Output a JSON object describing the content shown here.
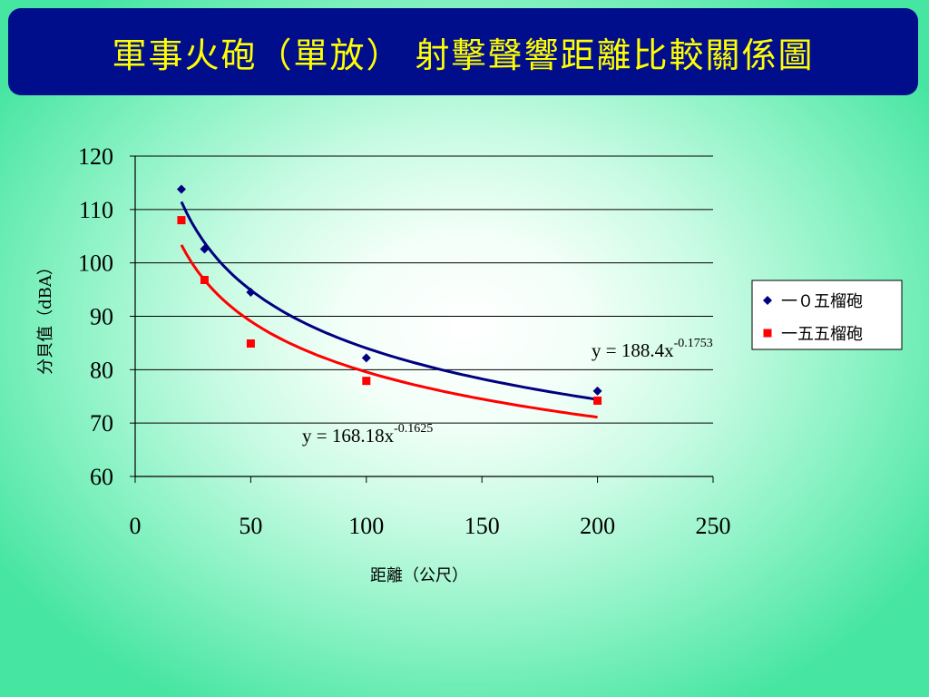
{
  "slide": {
    "title": "軍事火砲（單放） 射擊聲響距離比較關係圖"
  },
  "chart_data": {
    "type": "scatter",
    "title": "",
    "xlabel": "距離（公尺）",
    "ylabel": "分貝值（dBA）",
    "xlim": [
      0,
      250
    ],
    "ylim": [
      60,
      120
    ],
    "x_ticks": [
      "0",
      "50",
      "100",
      "150",
      "200",
      "250"
    ],
    "y_ticks": [
      "60",
      "70",
      "80",
      "90",
      "100",
      "110",
      "120"
    ],
    "grid": "horizontal",
    "legend_position": "right",
    "series": [
      {
        "name": "一０五榴砲",
        "color": "#000080",
        "marker": "diamond",
        "x": [
          20,
          30,
          50,
          100,
          200
        ],
        "y": [
          113.8,
          102.6,
          94.5,
          82.2,
          76.0
        ],
        "trendline": {
          "coef": 188.4,
          "exp": -0.1753,
          "equation_base": "y = 188.4x",
          "equation_exp": "-0.1753"
        }
      },
      {
        "name": "一五五榴砲",
        "color": "#ff0000",
        "marker": "square",
        "x": [
          20,
          30,
          50,
          100,
          200
        ],
        "y": [
          108.0,
          96.8,
          84.9,
          77.9,
          74.2
        ],
        "trendline": {
          "coef": 168.18,
          "exp": -0.1625,
          "equation_base": "y = 168.18x",
          "equation_exp": "-0.1625"
        }
      }
    ]
  }
}
